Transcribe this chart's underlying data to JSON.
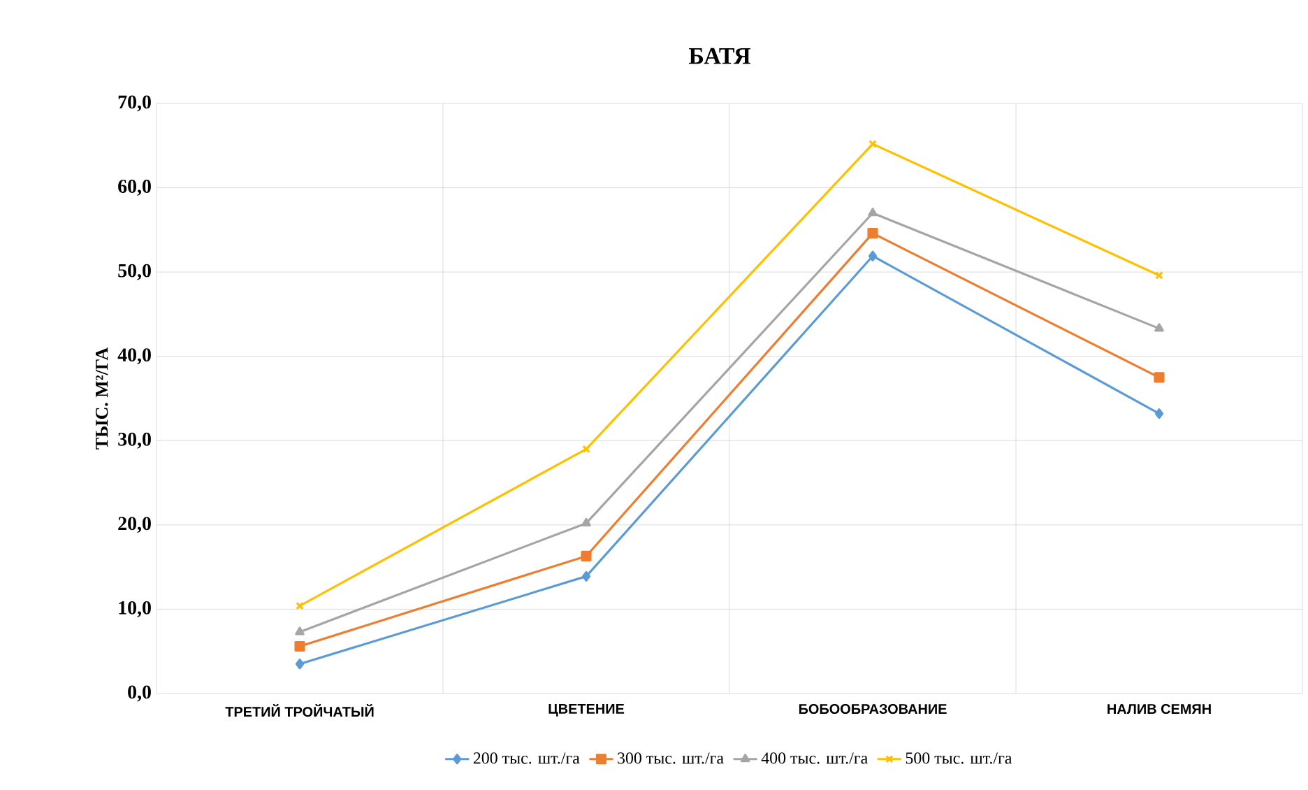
{
  "chart_data": {
    "type": "line",
    "title": "БАТЯ",
    "ylabel": "ТЫС. М²/ГА",
    "categories": [
      "ТРЕТИЙ ТРОЙЧАТЫЙ",
      "ЦВЕТЕНИЕ",
      "БОБООБРАЗОВАНИЕ",
      "НАЛИВ СЕМЯН"
    ],
    "series": [
      {
        "name": "200 тыс. шт./га",
        "color": "#5b9bd5",
        "marker": "diamond",
        "values": [
          3.5,
          13.9,
          51.9,
          33.2
        ]
      },
      {
        "name": "300 тыс. шт./га",
        "color": "#ed7d31",
        "marker": "square",
        "values": [
          5.6,
          16.3,
          54.6,
          37.5
        ]
      },
      {
        "name": "400 тыс. шт./га",
        "color": "#a5a5a5",
        "marker": "triangle",
        "values": [
          7.3,
          20.2,
          57.0,
          43.3
        ]
      },
      {
        "name": "500 тыс. шт./га",
        "color": "#ffc000",
        "marker": "cross",
        "values": [
          10.4,
          29.0,
          65.2,
          49.6
        ]
      }
    ],
    "ylim": [
      0,
      70
    ],
    "yticks": [
      {
        "value": 0,
        "label": "0,0"
      },
      {
        "value": 10,
        "label": "10,0"
      },
      {
        "value": 20,
        "label": "20,0"
      },
      {
        "value": 30,
        "label": "30,0"
      },
      {
        "value": 40,
        "label": "40,0"
      },
      {
        "value": 50,
        "label": "50,0"
      },
      {
        "value": 60,
        "label": "60,0"
      },
      {
        "value": 70,
        "label": "70,0"
      }
    ],
    "grid": true,
    "legend": "bottom",
    "line_style": "solid"
  }
}
